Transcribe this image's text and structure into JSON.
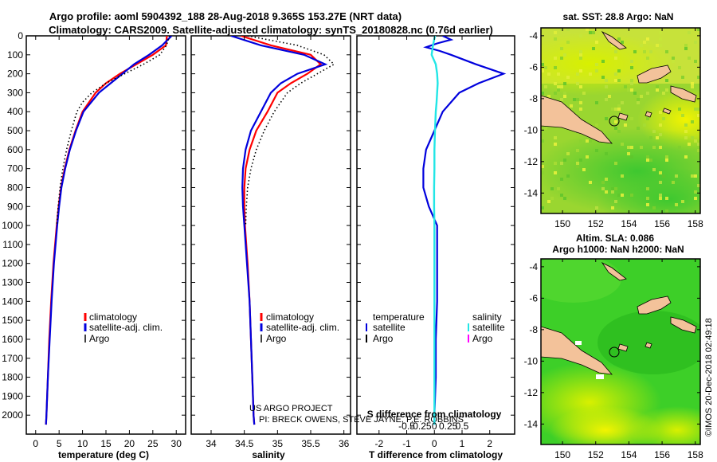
{
  "header": {
    "title_line1": "Argo profile: aoml 5904392_188 28-Aug-2018 9.365S 153.27E (NRT data)",
    "title_line2": "Climatology: CARS2009. Satellite-adjusted climatology: synTS_20180828.nc (0.76d earlier)"
  },
  "colors": {
    "climatology": "#ff0000",
    "satellite": "#0000dd",
    "argo": "#000000",
    "sat_salinity": "#22e6e6",
    "argo_salinity": "#ff00ff",
    "land": "#f3c29a"
  },
  "chart_data": [
    {
      "type": "line",
      "name": "temperature-profile",
      "xlabel": "temperature (deg C)",
      "ylabel": "",
      "xlim": [
        -2,
        32
      ],
      "ylim": [
        2100,
        0
      ],
      "xticks": [
        0,
        5,
        10,
        15,
        20,
        25,
        30
      ],
      "yticks": [
        0,
        100,
        200,
        300,
        400,
        500,
        600,
        700,
        800,
        900,
        1000,
        1100,
        1200,
        1300,
        1400,
        1500,
        1600,
        1700,
        1800,
        1900,
        2000
      ],
      "legend": [
        "climatology",
        "satellite-adj. clim.",
        "Argo"
      ],
      "legend_position": "lower-center",
      "series": [
        {
          "name": "climatology",
          "depth": [
            0,
            50,
            100,
            150,
            200,
            250,
            300,
            400,
            500,
            600,
            700,
            800,
            900,
            1000,
            1200,
            1400,
            1600,
            1800,
            2000,
            2050
          ],
          "values": [
            28.0,
            27.8,
            25.0,
            21.5,
            18.0,
            15.0,
            12.8,
            10.0,
            8.5,
            7.2,
            6.2,
            5.4,
            4.9,
            4.5,
            3.8,
            3.3,
            2.9,
            2.6,
            2.3,
            2.2
          ]
        },
        {
          "name": "satellite",
          "depth": [
            0,
            50,
            100,
            150,
            200,
            250,
            300,
            400,
            500,
            600,
            700,
            800,
            900,
            1000,
            1200,
            1400,
            1600,
            1800,
            2000,
            2050
          ],
          "values": [
            29.0,
            27.0,
            24.2,
            21.0,
            18.5,
            16.0,
            13.5,
            10.2,
            8.6,
            7.3,
            6.3,
            5.5,
            5.0,
            4.6,
            3.9,
            3.4,
            3.0,
            2.6,
            2.3,
            2.2
          ]
        },
        {
          "name": "argo",
          "depth": [
            0,
            50,
            100,
            150,
            200,
            250,
            300,
            350,
            400,
            500,
            600,
            700,
            800,
            900,
            1000
          ],
          "values": [
            28.6,
            27.9,
            26.5,
            23.0,
            19.0,
            15.0,
            12.0,
            10.0,
            8.8,
            7.6,
            6.6,
            5.8,
            5.2,
            4.8,
            4.5
          ]
        }
      ]
    },
    {
      "type": "line",
      "name": "salinity-profile",
      "xlabel": "salinity",
      "xlim": [
        33.7,
        36.1
      ],
      "ylim": [
        2100,
        0
      ],
      "xticks": [
        34,
        34.5,
        35,
        35.5,
        36
      ],
      "legend": [
        "climatology",
        "satellite-adj. clim.",
        "Argo"
      ],
      "legend_position": "lower-center",
      "annotation": [
        "US ARGO PROJECT",
        "PI: BRECK OWENS, STEVE JAYNE, P.E. ROBBINS"
      ],
      "series": [
        {
          "name": "climatology",
          "depth": [
            0,
            50,
            100,
            150,
            200,
            250,
            300,
            400,
            500,
            600,
            700,
            800,
            900,
            1000,
            1200,
            1400,
            1600,
            1800,
            2000,
            2050
          ],
          "values": [
            34.45,
            34.9,
            35.5,
            35.65,
            35.45,
            35.2,
            35.0,
            34.85,
            34.68,
            34.58,
            34.52,
            34.5,
            34.5,
            34.51,
            34.55,
            34.58,
            34.6,
            34.62,
            34.64,
            34.65
          ]
        },
        {
          "name": "satellite",
          "depth": [
            0,
            50,
            100,
            150,
            200,
            250,
            300,
            400,
            500,
            600,
            700,
            800,
            900,
            1000,
            1200,
            1400,
            1600,
            1800,
            2000,
            2050
          ],
          "values": [
            34.3,
            34.75,
            35.4,
            35.72,
            35.3,
            35.05,
            34.9,
            34.75,
            34.6,
            34.52,
            34.48,
            34.47,
            34.48,
            34.5,
            34.54,
            34.58,
            34.6,
            34.62,
            34.64,
            34.65
          ]
        },
        {
          "name": "argo",
          "depth": [
            0,
            50,
            100,
            150,
            200,
            250,
            300,
            400,
            500,
            600,
            700,
            800,
            900,
            1000
          ],
          "values": [
            34.55,
            35.3,
            35.7,
            35.85,
            35.6,
            35.35,
            35.15,
            34.95,
            34.8,
            34.68,
            34.6,
            34.55,
            34.53,
            34.52
          ]
        }
      ]
    },
    {
      "type": "line",
      "name": "difference-profile",
      "xlabel": "T difference from climatology",
      "xlabel_top": "S difference from climatology",
      "xlim": [
        -2.8,
        2.9
      ],
      "ylim": [
        2100,
        0
      ],
      "xticks": [
        -2,
        -1,
        0,
        1,
        2
      ],
      "xticks_salinity": [
        -0.5,
        -0.25,
        0,
        0.25,
        0.5
      ],
      "legend_temperature_title": "temperature",
      "legend_salinity_title": "salinity",
      "legend_temperature": [
        "satellite",
        "Argo"
      ],
      "legend_salinity": [
        "satellite",
        "Argo"
      ],
      "series": [
        {
          "name": "T satellite",
          "depth": [
            0,
            20,
            40,
            60,
            80,
            100,
            150,
            200,
            250,
            300,
            400,
            500,
            600,
            700,
            800,
            900,
            1000,
            1200,
            1400,
            1600,
            1800,
            2000,
            2050
          ],
          "values": [
            0.3,
            0.6,
            0.1,
            -0.3,
            0.2,
            0.6,
            1.5,
            2.5,
            1.6,
            0.9,
            0.3,
            0.0,
            -0.3,
            -0.4,
            -0.4,
            -0.2,
            0.1,
            0.1,
            0.1,
            0.05,
            0.05,
            0.0,
            0.0
          ]
        },
        {
          "name": "S satellite",
          "depth": [
            0,
            50,
            100,
            150,
            200,
            250,
            300,
            350,
            400,
            500,
            600,
            700,
            800,
            900,
            1000,
            1200,
            1400,
            1600,
            1800,
            2000,
            2050
          ],
          "values": [
            0.02,
            -0.05,
            -0.1,
            0.05,
            0.1,
            0.12,
            0.1,
            0.08,
            0.05,
            0.02,
            0.0,
            0.0,
            -0.01,
            -0.01,
            0.0,
            0.0,
            0.0,
            0.0,
            0.0,
            0.0,
            0.0
          ]
        }
      ]
    },
    {
      "type": "heatmap",
      "name": "sst-map",
      "title": "sat. SST: 28.8 Argo: NaN",
      "xlim": [
        148.7,
        158.3
      ],
      "ylim": [
        -15.3,
        -3.5
      ],
      "xticks": [
        150,
        152,
        154,
        156,
        158
      ],
      "yticks": [
        -4,
        -6,
        -8,
        -10,
        -12,
        -14
      ],
      "float_position": {
        "lon": 153.27,
        "lat": -9.365
      }
    },
    {
      "type": "heatmap",
      "name": "sla-map",
      "title_line1": "Altim. SLA: 0.086",
      "title_line2": "Argo h1000: NaN h2000: NaN",
      "xlim": [
        148.7,
        158.3
      ],
      "ylim": [
        -15.3,
        -3.5
      ],
      "xticks": [
        150,
        152,
        154,
        156,
        158
      ],
      "yticks": [
        -4,
        -6,
        -8,
        -10,
        -12,
        -14
      ],
      "float_position": {
        "lon": 153.27,
        "lat": -9.365
      }
    }
  ],
  "footer": {
    "stamp": "©IMOS 20-Dec-2018 02:49:18"
  }
}
